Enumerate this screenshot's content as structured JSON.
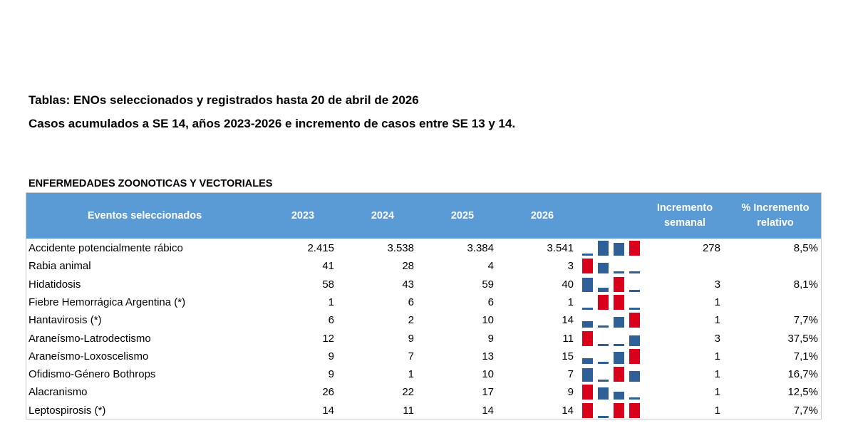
{
  "title_line1": "Tablas: ENOs seleccionados y registrados hasta 20 de abril de 2026",
  "title_line2": "Casos acumulados a SE 14, años 2023-2026 e incremento de casos entre SE 13 y 14.",
  "section_title": "ENFERMEDADES ZOONOTICAS Y VECTORIALES",
  "colors": {
    "header_bg": "#5b9bd5",
    "bar_blue": "#2f5f97",
    "bar_red": "#d9001b"
  },
  "headers": {
    "event": "Eventos seleccionados",
    "y2023": "2023",
    "y2024": "2024",
    "y2025": "2025",
    "y2026": "2026",
    "weekly_line1": "Incremento",
    "weekly_line2": "semanal",
    "relative_line1": "% Incremento",
    "relative_line2": "relativo"
  },
  "rows": [
    {
      "name": "Accidente potencialmente rábico",
      "y2023": "2.415",
      "y2024": "3.538",
      "y2025": "3.384",
      "y2026": "3.541",
      "spark": [
        2415,
        3538,
        3384,
        3541
      ],
      "weekly": "278",
      "relative": "8,5%"
    },
    {
      "name": "Rabia animal",
      "y2023": "41",
      "y2024": "28",
      "y2025": "4",
      "y2026": "3",
      "spark": [
        41,
        28,
        4,
        3
      ],
      "weekly": "",
      "relative": ""
    },
    {
      "name": "Hidatidosis",
      "y2023": "58",
      "y2024": "43",
      "y2025": "59",
      "y2026": "40",
      "spark": [
        58,
        43,
        59,
        40
      ],
      "weekly": "3",
      "relative": "8,1%"
    },
    {
      "name": "Fiebre Hemorrágica Argentina (*)",
      "y2023": "1",
      "y2024": "6",
      "y2025": "6",
      "y2026": "1",
      "spark": [
        1,
        6,
        6,
        1
      ],
      "weekly": "1",
      "relative": ""
    },
    {
      "name": "Hantavirosis (*)",
      "y2023": "6",
      "y2024": "2",
      "y2025": "10",
      "y2026": "14",
      "spark": [
        6,
        2,
        10,
        14
      ],
      "weekly": "1",
      "relative": "7,7%"
    },
    {
      "name": "Araneísmo-Latrodectismo",
      "y2023": "12",
      "y2024": "9",
      "y2025": "9",
      "y2026": "11",
      "spark": [
        12,
        9,
        9,
        11
      ],
      "weekly": "3",
      "relative": "37,5%"
    },
    {
      "name": "Araneísmo-Loxoscelismo",
      "y2023": "9",
      "y2024": "7",
      "y2025": "13",
      "y2026": "15",
      "spark": [
        9,
        7,
        13,
        15
      ],
      "weekly": "1",
      "relative": "7,1%"
    },
    {
      "name": "Ofidismo-Género Bothrops",
      "y2023": "9",
      "y2024": "1",
      "y2025": "10",
      "y2026": "7",
      "spark": [
        9,
        1,
        10,
        7
      ],
      "weekly": "1",
      "relative": "16,7%"
    },
    {
      "name": "Alacranismo",
      "y2023": "26",
      "y2024": "22",
      "y2025": "17",
      "y2026": "9",
      "spark": [
        26,
        22,
        17,
        9
      ],
      "weekly": "1",
      "relative": "12,5%"
    },
    {
      "name": "Leptospirosis (*)",
      "y2023": "14",
      "y2024": "11",
      "y2025": "14",
      "y2026": "14",
      "spark": [
        14,
        11,
        14,
        14
      ],
      "weekly": "1",
      "relative": "7,7%"
    }
  ]
}
